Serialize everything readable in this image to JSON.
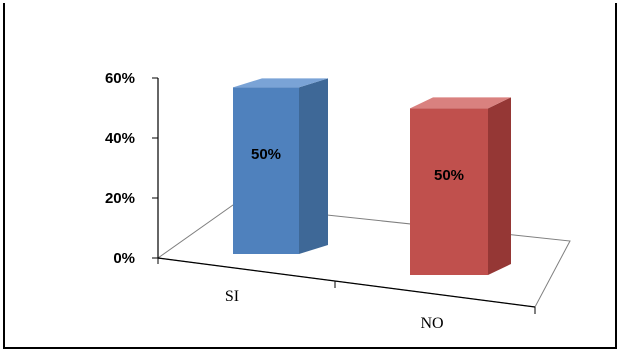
{
  "chart_data": {
    "type": "bar",
    "categories": [
      "SI",
      "NO"
    ],
    "values": [
      50,
      50
    ],
    "value_labels": [
      "50%",
      "50%"
    ],
    "colors": [
      "#4f81bd",
      "#c0504d"
    ],
    "ylim": [
      0,
      60
    ],
    "yticks": [
      "0%",
      "20%",
      "40%",
      "60%"
    ],
    "grid": false,
    "legend": "none",
    "style": "3d-column"
  }
}
